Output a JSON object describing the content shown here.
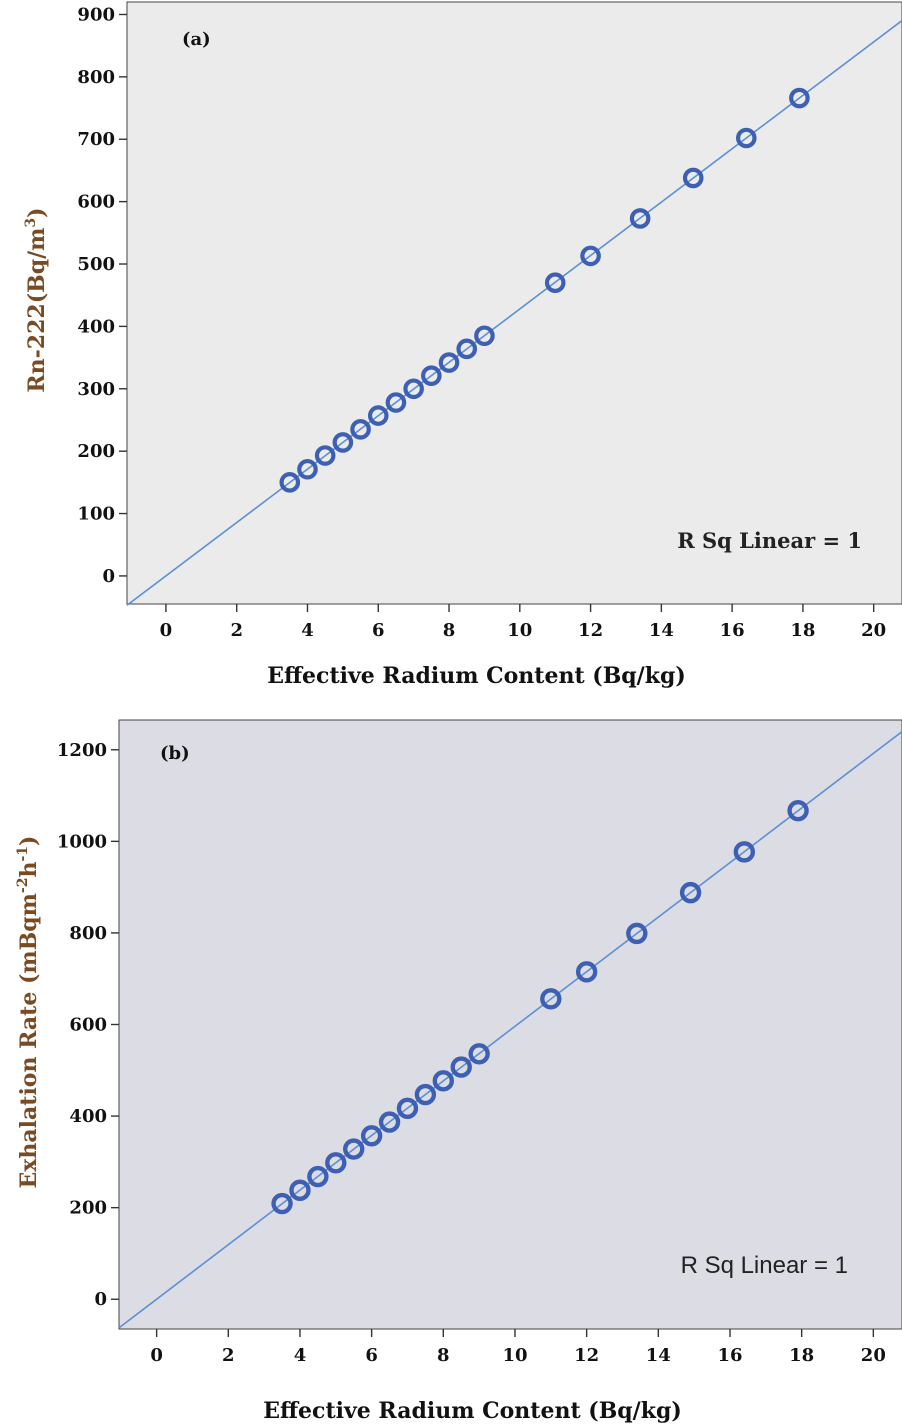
{
  "chart_data": [
    {
      "type": "scatter",
      "panel_label": "(a)",
      "xlabel": "Effective Radium Content (Bq/kg)",
      "ylabel_main": "Rn-222(Bq/m",
      "ylabel_sup": "3",
      "ylabel_tail": ")",
      "xlim": [
        -1.1,
        20.8
      ],
      "ylim": [
        -45,
        920
      ],
      "xticks": [
        0,
        2,
        4,
        6,
        8,
        10,
        12,
        14,
        16,
        18,
        20
      ],
      "yticks": [
        0,
        100,
        200,
        300,
        400,
        500,
        600,
        700,
        800,
        900
      ],
      "fit_line": {
        "slope": 42.8,
        "intercept": 0,
        "x_range": [
          -1.1,
          20.8
        ]
      },
      "annotation": "R Sq Linear = 1",
      "background": "#ebebeb",
      "marker_color": "#3d60b4",
      "line_color": "#5b8fd6",
      "points": {
        "x": [
          3.5,
          4.0,
          4.5,
          5.0,
          5.5,
          6.0,
          6.5,
          7.0,
          7.5,
          8.0,
          8.5,
          9.0,
          11.0,
          12.0,
          13.4,
          14.9,
          16.4,
          17.9
        ],
        "y": [
          150,
          171,
          193,
          214,
          235,
          257,
          278,
          300,
          321,
          342,
          364,
          385,
          470,
          513,
          573,
          638,
          702,
          766
        ]
      }
    },
    {
      "type": "scatter",
      "panel_label": "(b)",
      "xlabel": "Effective Radium Content (Bq/kg)",
      "ylabel_main": "Exhalation Rate (mBqm",
      "ylabel_sup1": "-2",
      "ylabel_mid": "h",
      "ylabel_sup2": "-1",
      "ylabel_tail": ")",
      "xlim": [
        -1.05,
        20.8
      ],
      "ylim": [
        -65,
        1265
      ],
      "xticks": [
        0,
        2,
        4,
        6,
        8,
        10,
        12,
        14,
        16,
        18,
        20
      ],
      "yticks": [
        0,
        200,
        400,
        600,
        800,
        1000,
        1200
      ],
      "fit_line": {
        "slope": 59.6,
        "intercept": 0,
        "x_range": [
          -1.05,
          20.8
        ]
      },
      "annotation": "R Sq Linear = 1",
      "background": "#dcdce4",
      "marker_color": "#3d60b4",
      "line_color": "#5b8fd6",
      "points": {
        "x": [
          3.5,
          4.0,
          4.5,
          5.0,
          5.5,
          6.0,
          6.5,
          7.0,
          7.5,
          8.0,
          8.5,
          9.0,
          11.0,
          12.0,
          13.4,
          14.9,
          16.4,
          17.9
        ],
        "y": [
          209,
          238,
          268,
          298,
          328,
          357,
          387,
          417,
          447,
          477,
          507,
          536,
          656,
          715,
          799,
          888,
          977,
          1067
        ]
      }
    }
  ]
}
